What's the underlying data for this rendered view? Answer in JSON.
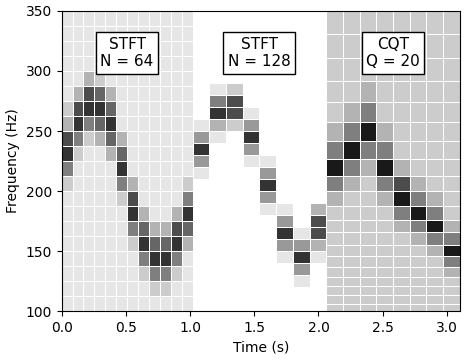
{
  "chart_data": {
    "type": "heatmap",
    "xlabel": "Time (s)",
    "ylabel": "Frequency (Hz)",
    "xlim": [
      0,
      3.1
    ],
    "ylim": [
      100,
      350
    ],
    "xticks": [
      {
        "value": 0,
        "label": "0.0"
      },
      {
        "value": 0.5,
        "label": "0.5"
      },
      {
        "value": 1,
        "label": "1.0"
      },
      {
        "value": 1.5,
        "label": "1.5"
      },
      {
        "value": 2,
        "label": "2.0"
      },
      {
        "value": 2.5,
        "label": "2.5"
      },
      {
        "value": 3,
        "label": "3.0"
      }
    ],
    "yticks": [
      100,
      150,
      200,
      250,
      300,
      350
    ],
    "cell_range": [
      0,
      10
    ],
    "panels": [
      {
        "label": "STFT\nN = 64",
        "time_edges": [
          0,
          0.085,
          0.17,
          0.255,
          0.34,
          0.425,
          0.51,
          0.595,
          0.68,
          0.765,
          0.85,
          0.935,
          1.02
        ],
        "freq_edges": [
          100,
          112.5,
          125,
          137.5,
          150,
          162.5,
          175,
          187.5,
          200,
          212.5,
          225,
          237.5,
          250,
          262.5,
          275,
          287.5,
          300,
          312.5,
          325,
          337.5,
          350
        ],
        "cells": [
          [
            1,
            1,
            1,
            1,
            1,
            1,
            1,
            1,
            2,
            5,
            8,
            7,
            3,
            2,
            1,
            1,
            1,
            1,
            1,
            1
          ],
          [
            1,
            1,
            1,
            1,
            1,
            1,
            1,
            1,
            1,
            1,
            2,
            5,
            8,
            7,
            3,
            1,
            1,
            1,
            1,
            1
          ],
          [
            1,
            1,
            1,
            1,
            1,
            1,
            1,
            1,
            1,
            1,
            1,
            2,
            5,
            8,
            7,
            3,
            1,
            1,
            1,
            1
          ],
          [
            1,
            1,
            1,
            1,
            1,
            1,
            1,
            1,
            1,
            1,
            1,
            3,
            6,
            8,
            6,
            2,
            1,
            1,
            1,
            1
          ],
          [
            1,
            1,
            1,
            1,
            1,
            1,
            1,
            1,
            1,
            1,
            3,
            6,
            8,
            6,
            3,
            1,
            1,
            1,
            1,
            1
          ],
          [
            1,
            1,
            1,
            1,
            1,
            1,
            1,
            2,
            5,
            8,
            6,
            3,
            1,
            1,
            1,
            1,
            1,
            1,
            1,
            1
          ],
          [
            1,
            1,
            1,
            1,
            2,
            5,
            8,
            7,
            3,
            1,
            1,
            1,
            1,
            1,
            1,
            1,
            1,
            1,
            1,
            1
          ],
          [
            1,
            1,
            2,
            5,
            8,
            6,
            3,
            1,
            1,
            1,
            1,
            1,
            1,
            1,
            1,
            1,
            1,
            1,
            1,
            1
          ],
          [
            1,
            2,
            5,
            8,
            6,
            3,
            1,
            1,
            1,
            1,
            1,
            1,
            1,
            1,
            1,
            1,
            1,
            1,
            1,
            1
          ],
          [
            1,
            2,
            5,
            8,
            6,
            3,
            1,
            1,
            1,
            1,
            1,
            1,
            1,
            1,
            1,
            1,
            1,
            1,
            1,
            1
          ],
          [
            1,
            1,
            2,
            5,
            8,
            7,
            3,
            1,
            1,
            1,
            1,
            1,
            1,
            1,
            1,
            1,
            1,
            1,
            1,
            1
          ],
          [
            1,
            1,
            1,
            1,
            3,
            6,
            8,
            5,
            2,
            1,
            1,
            1,
            1,
            1,
            1,
            1,
            1,
            1,
            1,
            1
          ]
        ]
      },
      {
        "label": "STFT\nN = 128",
        "time_edges": [
          1.02,
          1.15,
          1.28,
          1.41,
          1.54,
          1.67,
          1.8,
          1.93,
          2.06
        ],
        "freq_edges": [
          100,
          110,
          120,
          130,
          140,
          150,
          160,
          170,
          180,
          190,
          200,
          210,
          220,
          230,
          240,
          250,
          260,
          270,
          280,
          290,
          300,
          310,
          320,
          330,
          340,
          350
        ],
        "cells": [
          [
            0,
            0,
            0,
            0,
            0,
            0,
            0,
            0,
            0,
            0,
            0,
            1,
            4,
            8,
            4,
            1,
            0,
            0,
            0,
            0,
            0,
            0,
            0,
            0,
            0
          ],
          [
            0,
            0,
            0,
            0,
            0,
            0,
            0,
            0,
            0,
            0,
            0,
            0,
            0,
            0,
            1,
            3,
            8,
            5,
            1,
            0,
            0,
            0,
            0,
            0,
            0
          ],
          [
            0,
            0,
            0,
            0,
            0,
            0,
            0,
            0,
            0,
            0,
            0,
            0,
            0,
            0,
            0,
            2,
            7,
            7,
            2,
            0,
            0,
            0,
            0,
            0,
            0
          ],
          [
            0,
            0,
            0,
            0,
            0,
            0,
            0,
            0,
            0,
            0,
            0,
            0,
            1,
            4,
            8,
            4,
            1,
            0,
            0,
            0,
            0,
            0,
            0,
            0,
            0
          ],
          [
            0,
            0,
            0,
            0,
            0,
            0,
            0,
            0,
            1,
            4,
            8,
            4,
            1,
            0,
            0,
            0,
            0,
            0,
            0,
            0,
            0,
            0,
            0,
            0,
            0
          ],
          [
            0,
            0,
            0,
            0,
            1,
            4,
            8,
            4,
            1,
            0,
            0,
            0,
            0,
            0,
            0,
            0,
            0,
            0,
            0,
            0,
            0,
            0,
            0,
            0,
            0
          ],
          [
            0,
            0,
            1,
            4,
            8,
            4,
            1,
            0,
            0,
            0,
            0,
            0,
            0,
            0,
            0,
            0,
            0,
            0,
            0,
            0,
            0,
            0,
            0,
            0,
            0
          ],
          [
            0,
            0,
            0,
            0,
            1,
            3,
            7,
            7,
            3,
            0,
            0,
            0,
            0,
            0,
            0,
            0,
            0,
            0,
            0,
            0,
            0,
            0,
            0,
            0,
            0
          ]
        ]
      },
      {
        "label": "CQT\nQ = 20",
        "time_edges": [
          2.06,
          2.19,
          2.32,
          2.45,
          2.58,
          2.71,
          2.84,
          2.97,
          3.1
        ],
        "freq_edges": [
          100,
          106.5,
          113.4,
          120.8,
          128.7,
          137,
          146,
          155.5,
          165.6,
          176.3,
          187.8,
          200,
          213,
          226.8,
          241.6,
          257.3,
          274,
          291.8,
          310.8,
          331,
          352.5
        ],
        "cells": [
          [
            2,
            2,
            2,
            2,
            2,
            2,
            2,
            2,
            2,
            2,
            3,
            5,
            9,
            5,
            3,
            2,
            2,
            2,
            2,
            2
          ],
          [
            2,
            2,
            2,
            2,
            2,
            2,
            2,
            2,
            2,
            2,
            2,
            3,
            5,
            9,
            5,
            3,
            2,
            2,
            2,
            2
          ],
          [
            2,
            2,
            2,
            2,
            2,
            2,
            2,
            2,
            2,
            2,
            2,
            2,
            3,
            5,
            9,
            5,
            3,
            2,
            2,
            2
          ],
          [
            2,
            2,
            2,
            2,
            2,
            2,
            2,
            2,
            2,
            2,
            3,
            5,
            9,
            5,
            3,
            2,
            2,
            2,
            2,
            2
          ],
          [
            2,
            2,
            2,
            2,
            2,
            2,
            2,
            2,
            3,
            5,
            9,
            7,
            3,
            2,
            2,
            2,
            2,
            2,
            2,
            2
          ],
          [
            2,
            2,
            2,
            2,
            2,
            2,
            2,
            3,
            5,
            9,
            5,
            3,
            2,
            2,
            2,
            2,
            2,
            2,
            2,
            2
          ],
          [
            2,
            2,
            2,
            2,
            2,
            2,
            3,
            5,
            9,
            5,
            3,
            2,
            2,
            2,
            2,
            2,
            2,
            2,
            2,
            2
          ],
          [
            2,
            2,
            2,
            2,
            3,
            5,
            9,
            5,
            3,
            2,
            2,
            2,
            2,
            2,
            2,
            2,
            2,
            2,
            2,
            2
          ]
        ]
      }
    ]
  }
}
